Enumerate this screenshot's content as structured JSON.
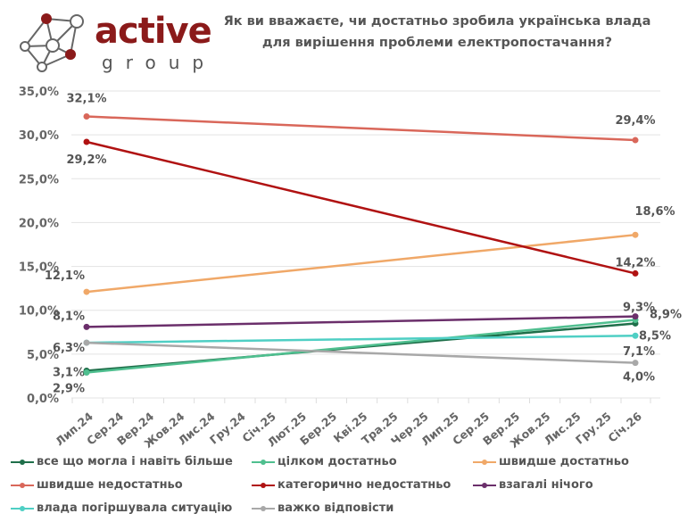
{
  "logo": {
    "word": "active",
    "sub": "group"
  },
  "title_lines": [
    "Як ви вважаєте, чи достатньо зробила українська влада",
    "для вирішення проблеми електропостачання?"
  ],
  "chart_data": {
    "type": "line",
    "title": "Як ви вважаєте, чи достатньо зробила українська влада для вирішення проблеми електропостачання?",
    "xlabel": "",
    "ylabel": "",
    "categories": [
      "Лип.24",
      "Сер.24",
      "Вер.24",
      "Жов.24",
      "Лис.24",
      "Гру.24",
      "Січ.25",
      "Лют.25",
      "Бер.25",
      "Кві.25",
      "Тра.25",
      "Чер.25",
      "Лип.25",
      "Сер.25",
      "Вер.25",
      "Жов.25",
      "Лис.25",
      "Гру.25",
      "Січ.26"
    ],
    "ylim": [
      0,
      35
    ],
    "yticks": [
      0,
      5,
      10,
      15,
      20,
      25,
      30,
      35
    ],
    "ytick_labels": [
      "0,0%",
      "5,0%",
      "10,0%",
      "15,0%",
      "20,0%",
      "25,0%",
      "30,0%",
      "35,0%"
    ],
    "grid": true,
    "legend_position": "bottom",
    "series": [
      {
        "name": "все що могла і навіть більше",
        "color": "#1f6f4a",
        "points": [
          {
            "x": "Лип.24",
            "y": 3.1,
            "label": "3,1%"
          },
          {
            "x": "Січ.26",
            "y": 8.5,
            "label": "8,5%"
          }
        ]
      },
      {
        "name": "цілком достатньо",
        "color": "#4fbf8f",
        "points": [
          {
            "x": "Лип.24",
            "y": 2.9,
            "label": "2,9%"
          },
          {
            "x": "Січ.26",
            "y": 8.9,
            "label": "8,9%"
          }
        ]
      },
      {
        "name": "швидше достатньо",
        "color": "#f0a868",
        "points": [
          {
            "x": "Лип.24",
            "y": 12.1,
            "label": "12,1%"
          },
          {
            "x": "Січ.26",
            "y": 18.6,
            "label": "18,6%"
          }
        ]
      },
      {
        "name": "швидше недостатньо",
        "color": "#d9675a",
        "points": [
          {
            "x": "Лип.24",
            "y": 32.1,
            "label": "32,1%"
          },
          {
            "x": "Січ.26",
            "y": 29.4,
            "label": "29,4%"
          }
        ]
      },
      {
        "name": "категорично недостатньо",
        "color": "#b01212",
        "points": [
          {
            "x": "Лип.24",
            "y": 29.2,
            "label": "29,2%"
          },
          {
            "x": "Січ.26",
            "y": 14.2,
            "label": "14,2%"
          }
        ]
      },
      {
        "name": "взагалі нічого",
        "color": "#6b2f6b",
        "points": [
          {
            "x": "Лип.24",
            "y": 8.1,
            "label": "8,1%"
          },
          {
            "x": "Січ.26",
            "y": 9.3,
            "label": "9,3%"
          }
        ]
      },
      {
        "name": "влада погіршувала ситуацію",
        "color": "#4fcfc4",
        "points": [
          {
            "x": "Лип.24",
            "y": 6.3,
            "label": "6,3%"
          },
          {
            "x": "Січ.26",
            "y": 7.1,
            "label": "7,1%"
          }
        ]
      },
      {
        "name": "важко відповісти",
        "color": "#a8a8a8",
        "points": [
          {
            "x": "Лип.24",
            "y": 6.3,
            "label": ""
          },
          {
            "x": "Січ.26",
            "y": 4.0,
            "label": "4,0%"
          }
        ]
      }
    ]
  }
}
